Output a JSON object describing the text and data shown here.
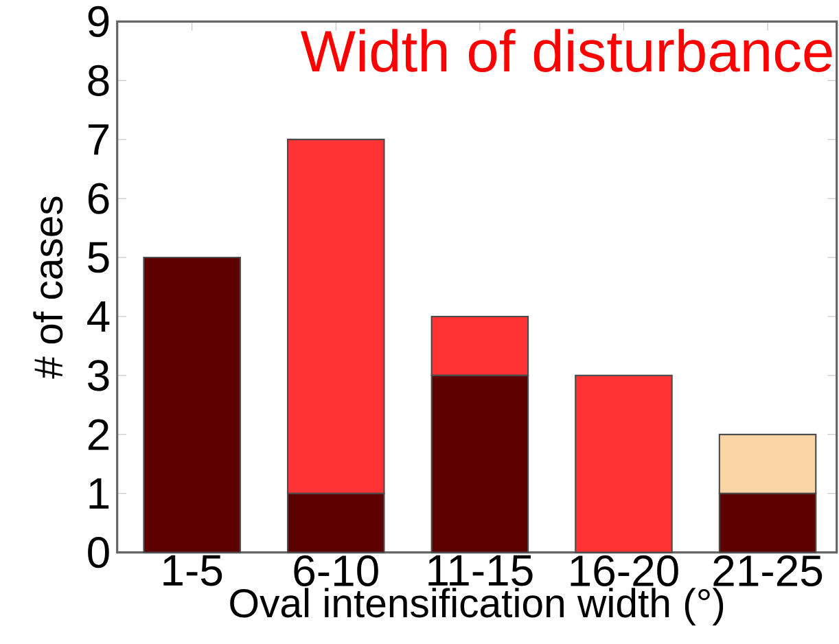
{
  "chart_data": {
    "type": "bar",
    "stacked": true,
    "categories": [
      "1-5",
      "6-10",
      "11-15",
      "16-20",
      "21-25"
    ],
    "series": [
      {
        "color": "#5c0000",
        "values": [
          5,
          1,
          3,
          0,
          1
        ]
      },
      {
        "color": "#ff3333",
        "values": [
          0,
          6,
          1,
          3,
          0
        ]
      },
      {
        "color": "#fbd5a5",
        "values": [
          0,
          0,
          0,
          0,
          1
        ]
      }
    ],
    "xlabel": "Oval intensification width (°)",
    "ylabel": "# of cases",
    "ylim": [
      0,
      9
    ],
    "yticks": [
      0,
      1,
      2,
      3,
      4,
      5,
      6,
      7,
      8,
      9
    ],
    "annotations": [
      "Width of disturbance"
    ]
  }
}
